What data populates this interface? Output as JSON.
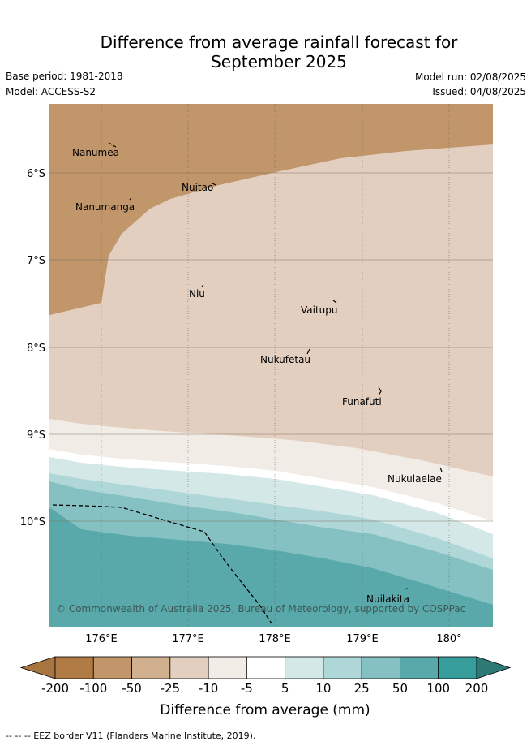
{
  "title_line1": "Difference from average rainfall forecast for",
  "title_line2": "September 2025",
  "base_period": "Base period: 1981-2018",
  "model": "Model: ACCESS-S2",
  "model_run": "Model run: 02/08/2025",
  "issued": "Issued: 04/08/2025",
  "lat_labels": [
    "6°S",
    "7°S",
    "8°S",
    "9°S",
    "10°S"
  ],
  "lon_labels": [
    "176°E",
    "177°E",
    "178°E",
    "179°E",
    "180°"
  ],
  "islands": [
    "Nanumea",
    "Nuitao",
    "Nanumanga",
    "Niu",
    "Vaitupu",
    "Nukufetau",
    "Funafuti",
    "Nukulaelae",
    "Nuilakita"
  ],
  "copyright": "© Commonwealth of Australia 2025, Bureau of Meteorology, supported by COSPPac",
  "legend": {
    "ticks": [
      "-200",
      "-100",
      "-50",
      "-25",
      "-10",
      "-5",
      "5",
      "10",
      "25",
      "50",
      "100",
      "200"
    ],
    "title": "Difference from average (mm)",
    "colors": [
      "#a87440",
      "#b07a44",
      "#c0966a",
      "#d1b08f",
      "#e3cfbf",
      "#f2ece6",
      "#ffffff",
      "#d4e8e8",
      "#afd7d8",
      "#85c1c2",
      "#5aa9aa",
      "#379d9b",
      "#2e7876"
    ]
  },
  "footer": "-- -- -- EEZ border V11 (Flanders Marine Institute, 2019)."
}
